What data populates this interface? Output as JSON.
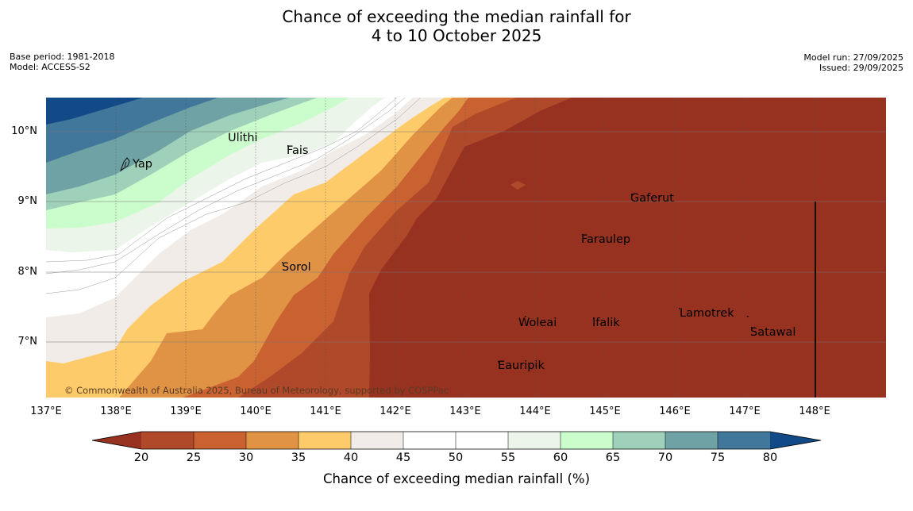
{
  "title": {
    "line1": "Chance of exceeding the median rainfall for",
    "line2": "4 to 10 October 2025"
  },
  "meta": {
    "base_period": "Base period: 1981-2018",
    "model": "Model: ACCESS-S2",
    "model_run": "Model run: 27/09/2025",
    "issued": "Issued: 29/09/2025"
  },
  "map": {
    "lat_labels": [
      "10°N",
      "9°N",
      "8°N",
      "7°N"
    ],
    "lon_labels": [
      "137°E",
      "138°E",
      "139°E",
      "140°E",
      "141°E",
      "142°E",
      "143°E",
      "144°E",
      "145°E",
      "146°E",
      "147°E",
      "148°E"
    ],
    "places": [
      "Ulithi",
      "Yap",
      "Fais",
      "Gaferut",
      "Faraulep",
      "Sorol",
      "Lamotrek",
      "Woleai",
      "Ifalik",
      "Satawal",
      "Eauripik"
    ],
    "copyright": "© Commonwealth of Australia 2025, Bureau of Meteorology, supported by COSPPac"
  },
  "colorbar": {
    "ticks": [
      "20",
      "25",
      "30",
      "35",
      "40",
      "45",
      "50",
      "55",
      "60",
      "65",
      "70",
      "75",
      "80"
    ],
    "label": "Chance of exceeding median rainfall (%)",
    "colors": [
      "#96321f",
      "#b0482a",
      "#c96230",
      "#e09345",
      "#fecb6a",
      "#f1ece7",
      "#ffffff",
      "#ffffff",
      "#ebf5e9",
      "#cbfdcc",
      "#9ed0ba",
      "#6fa2a4",
      "#40779b",
      "#124987"
    ]
  }
}
